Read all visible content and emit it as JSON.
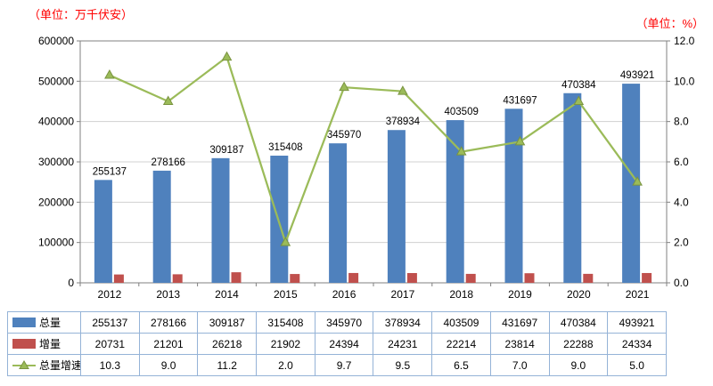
{
  "units": {
    "left": "（单位：万千伏安）",
    "right": "（单位：%）"
  },
  "chart_data": {
    "type": "bar+line",
    "title": "",
    "categories": [
      "2012",
      "2013",
      "2014",
      "2015",
      "2016",
      "2017",
      "2018",
      "2019",
      "2020",
      "2021"
    ],
    "series": [
      {
        "key": "total",
        "name": "总量",
        "type": "bar",
        "axis": "left",
        "color": "#4f81bd",
        "values": [
          255137,
          278166,
          309187,
          315408,
          345970,
          378934,
          403509,
          431697,
          470384,
          493921
        ],
        "display": [
          "255137",
          "278166",
          "309187",
          "315408",
          "345970",
          "378934",
          "403509",
          "431697",
          "470384",
          "493921"
        ]
      },
      {
        "key": "increment",
        "name": "增量",
        "type": "bar",
        "axis": "left",
        "color": "#c0504d",
        "values": [
          20731,
          21201,
          26218,
          21902,
          24394,
          24231,
          22214,
          23814,
          22288,
          24334
        ],
        "display": [
          "20731",
          "21201",
          "26218",
          "21902",
          "24394",
          "24231",
          "22214",
          "23814",
          "22288",
          "24334"
        ]
      },
      {
        "key": "growth",
        "name": "总量增速",
        "type": "line",
        "axis": "right",
        "color": "#9bbb59",
        "values": [
          10.3,
          9.0,
          11.2,
          2.0,
          9.7,
          9.5,
          6.5,
          7.0,
          9.0,
          5.0
        ],
        "display": [
          "10.3",
          "9.0",
          "11.2",
          "2.0",
          "9.7",
          "9.5",
          "6.5",
          "7.0",
          "9.0",
          "5.0"
        ]
      }
    ],
    "left_axis": {
      "min": 0,
      "max": 600000,
      "step": 100000,
      "ticks": [
        "0",
        "100000",
        "200000",
        "300000",
        "400000",
        "500000",
        "600000"
      ]
    },
    "right_axis": {
      "min": 0,
      "max": 12,
      "step": 2,
      "ticks": [
        "0.0",
        "2.0",
        "4.0",
        "6.0",
        "8.0",
        "10.0",
        "12.0"
      ]
    },
    "bar_value_labels": true,
    "grid": true,
    "legend_position": "table-left",
    "colors": {
      "grid_line": "#d0d0d0",
      "axis_line": "#808080",
      "table_border": "#95b3d7",
      "unit_text": "#ff0000"
    }
  }
}
